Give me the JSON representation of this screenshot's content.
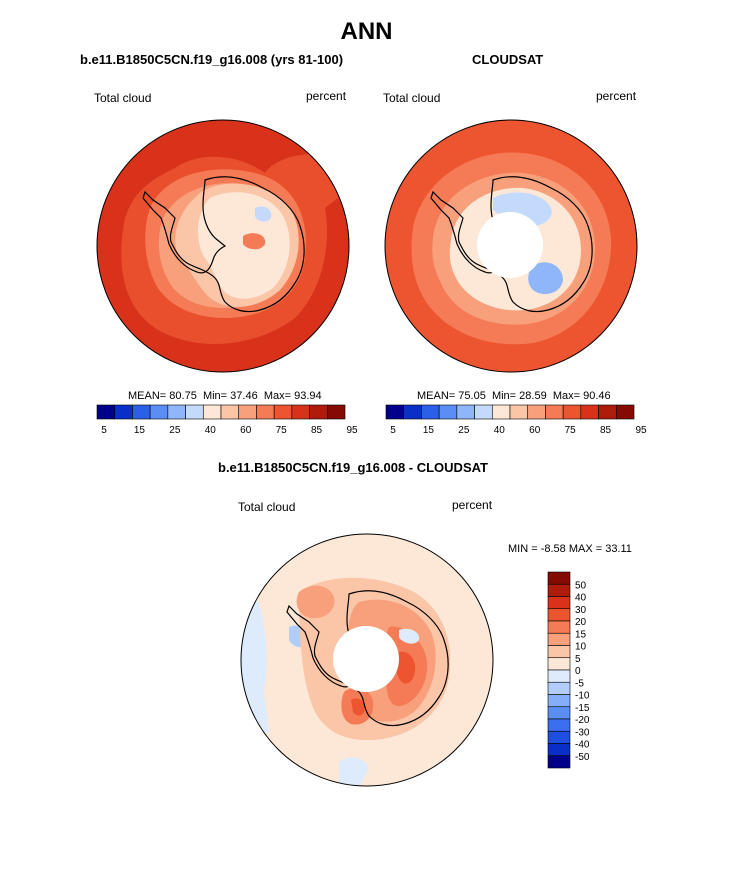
{
  "main_title": "ANN",
  "colors": {
    "abs_scale": [
      "#00008a",
      "#0a2fc8",
      "#2a5fe8",
      "#5b8ef5",
      "#8fb6f8",
      "#c4dafc",
      "#fde8d8",
      "#fbc6a8",
      "#f8a07c",
      "#f47b55",
      "#ec5530",
      "#d8321a",
      "#b01c0c",
      "#850a04"
    ],
    "diff_scale": [
      "#00008a",
      "#0a2fc8",
      "#1e4fe0",
      "#3b6ff0",
      "#5b8ef5",
      "#86adf7",
      "#b2cdfa",
      "#deebfd",
      "#fde8d8",
      "#fbc6a8",
      "#f8a07c",
      "#f47b55",
      "#ec5530",
      "#d8321a",
      "#b01c0c",
      "#850a04"
    ],
    "coast": "#000000"
  },
  "chart_data": [
    {
      "type": "heatmap",
      "projection": "south-polar-stereographic",
      "title": "b.e11.B1850C5CN.f19_g16.008 (yrs 81-100)",
      "left_label": "Total cloud",
      "right_label": "percent",
      "stats": {
        "mean_label": "MEAN=",
        "mean": "80.75",
        "min_label": "Min=",
        "min": "37.46",
        "max_label": "Max=",
        "max": "93.94"
      },
      "colorbar_ticks": [
        "5",
        "15",
        "25",
        "40",
        "60",
        "75",
        "85",
        "95"
      ],
      "has_missing_pole": false
    },
    {
      "type": "heatmap",
      "projection": "south-polar-stereographic",
      "title": "CLOUDSAT",
      "left_label": "Total cloud",
      "right_label": "percent",
      "stats": {
        "mean_label": "MEAN=",
        "mean": "75.05",
        "min_label": "Min=",
        "min": "28.59",
        "max_label": "Max=",
        "max": "90.46"
      },
      "colorbar_ticks": [
        "5",
        "15",
        "25",
        "40",
        "60",
        "75",
        "85",
        "95"
      ],
      "has_missing_pole": true
    },
    {
      "type": "heatmap",
      "projection": "south-polar-stereographic",
      "title": "b.e11.B1850C5CN.f19_g16.008 - CLOUDSAT",
      "left_label": "Total cloud",
      "right_label": "percent",
      "minmax_text": "MIN =  -8.58 MAX =  33.11",
      "colorbar_ticks": [
        "50",
        "40",
        "30",
        "20",
        "15",
        "10",
        "5",
        "0",
        "-5",
        "-10",
        "-15",
        "-20",
        "-30",
        "-40",
        "-50"
      ],
      "has_missing_pole": true
    }
  ]
}
